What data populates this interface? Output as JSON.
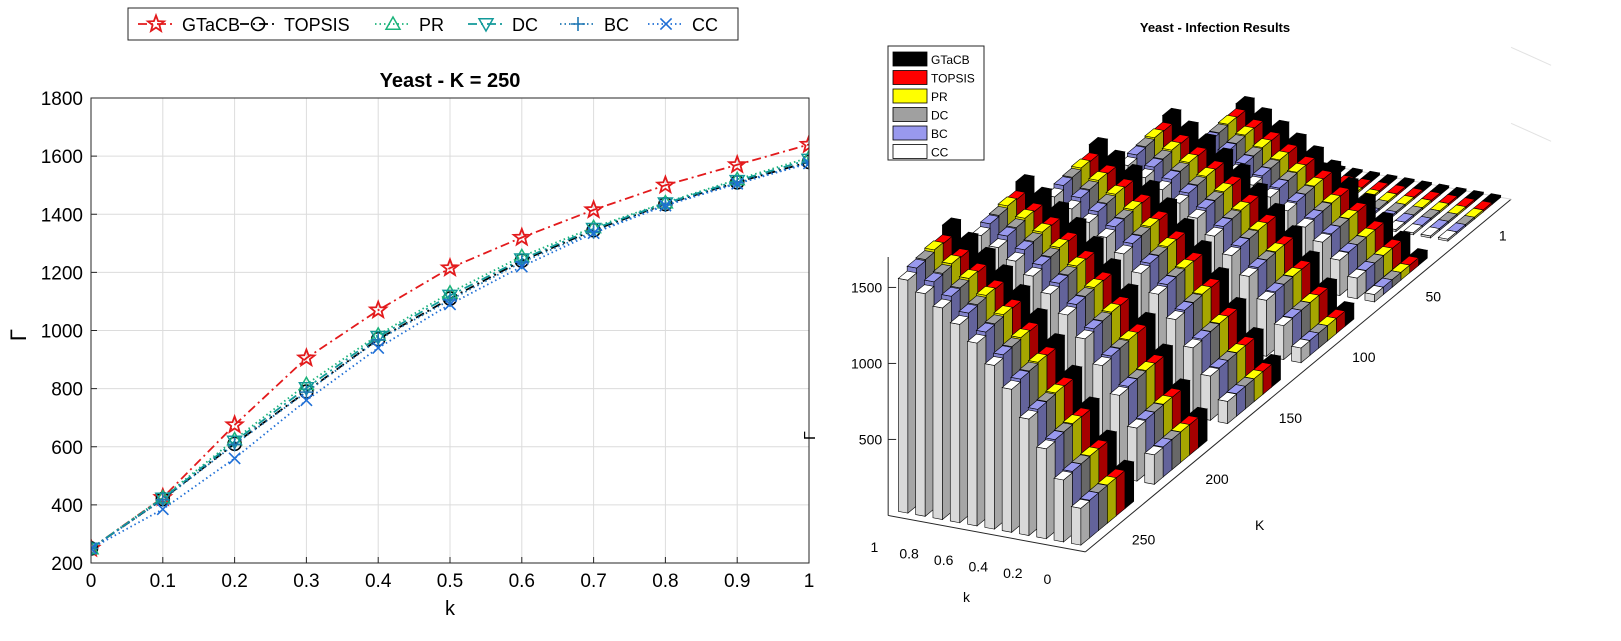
{
  "chart_data": [
    {
      "type": "line",
      "title": "Yeast - K = 250",
      "xlabel": "k",
      "ylabel": "Γ",
      "xlim": [
        0,
        1
      ],
      "ylim": [
        200,
        1800
      ],
      "grid": true,
      "legend_position": "top",
      "x": [
        0,
        0.1,
        0.2,
        0.3,
        0.4,
        0.5,
        0.6,
        0.7,
        0.8,
        0.9,
        1
      ],
      "x_tick_labels": [
        "0",
        "0.1",
        "0.2",
        "0.3",
        "0.4",
        "0.5",
        "0.6",
        "0.7",
        "0.8",
        "0.9",
        "1"
      ],
      "y_ticks": [
        200,
        400,
        600,
        800,
        1000,
        1200,
        1400,
        1600,
        1800
      ],
      "series": [
        {
          "name": "GTaCB",
          "color": "#e31a1c",
          "marker": "star",
          "dash": "dashdot",
          "values": [
            250,
            425,
            675,
            905,
            1070,
            1215,
            1320,
            1415,
            1500,
            1570,
            1640
          ]
        },
        {
          "name": "TOPSIS",
          "color": "#000000",
          "marker": "circle",
          "dash": "dashdot",
          "values": [
            250,
            420,
            610,
            790,
            970,
            1110,
            1240,
            1345,
            1435,
            1510,
            1580
          ]
        },
        {
          "name": "PR",
          "color": "#1ab37a",
          "marker": "triangle-up",
          "dash": "dotted",
          "values": [
            250,
            425,
            625,
            815,
            985,
            1130,
            1255,
            1355,
            1440,
            1520,
            1595
          ]
        },
        {
          "name": "DC",
          "color": "#129a9a",
          "marker": "triangle-down",
          "dash": "dashdot",
          "values": [
            250,
            422,
            618,
            802,
            978,
            1120,
            1245,
            1350,
            1438,
            1515,
            1588
          ]
        },
        {
          "name": "BC",
          "color": "#1f77b4",
          "marker": "plus",
          "dash": "dotted",
          "values": [
            250,
            418,
            608,
            788,
            968,
            1105,
            1235,
            1340,
            1432,
            1508,
            1578
          ]
        },
        {
          "name": "CC",
          "color": "#1f6fd6",
          "marker": "x",
          "dash": "dotted",
          "values": [
            250,
            385,
            560,
            760,
            940,
            1090,
            1220,
            1335,
            1430,
            1505,
            1575
          ]
        }
      ]
    },
    {
      "type": "bar3d",
      "title": "Yeast -  Infection Results",
      "xlabel": "k",
      "ylabel": "K",
      "zlabel": "Γ",
      "k_tick_labels": [
        "1",
        "0.8",
        "0.6",
        "0.4",
        "0.2",
        "0"
      ],
      "K_tick_labels": [
        "1",
        "50",
        "100",
        "150",
        "200",
        "250"
      ],
      "z_tick_labels": [
        "500",
        "1000",
        "1500"
      ],
      "k_values": [
        0,
        0.1,
        0.2,
        0.3,
        0.4,
        0.5,
        0.6,
        0.7,
        0.8,
        0.9,
        1
      ],
      "K_values": [
        1,
        50,
        100,
        150,
        200,
        250
      ],
      "method_colors": [
        "#000000",
        "#ff0000",
        "#ffff00",
        "#a0a0a0",
        "#9999ee",
        "#ffffff"
      ],
      "legend": [
        "GTaCB",
        "TOPSIS",
        "PR",
        "DC",
        "BC",
        "CC"
      ],
      "values_by_K": {
        "1": [
          1,
          1,
          1,
          1,
          1,
          1,
          1,
          1,
          1,
          1,
          1
        ],
        "50": [
          50,
          140,
          240,
          340,
          420,
          510,
          580,
          640,
          700,
          760,
          810
        ],
        "100": [
          100,
          230,
          380,
          520,
          640,
          750,
          850,
          930,
          1000,
          1060,
          1120
        ],
        "150": [
          150,
          300,
          470,
          640,
          790,
          910,
          1020,
          1110,
          1190,
          1260,
          1320
        ],
        "200": [
          200,
          360,
          560,
          740,
          900,
          1040,
          1160,
          1260,
          1340,
          1410,
          1470
        ],
        "250": [
          250,
          420,
          610,
          790,
          970,
          1110,
          1240,
          1345,
          1435,
          1510,
          1580
        ]
      }
    }
  ]
}
